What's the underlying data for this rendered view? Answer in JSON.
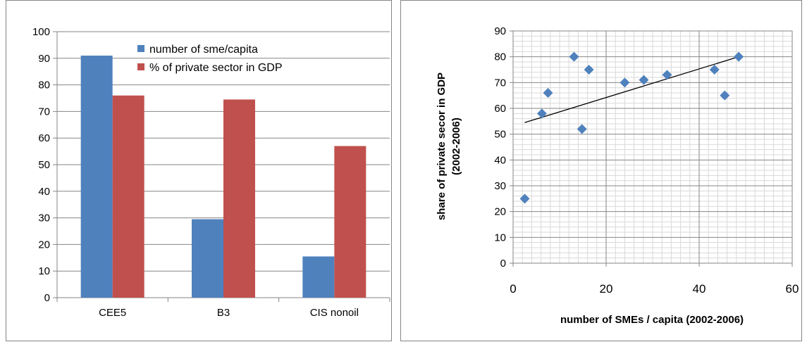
{
  "chart_data": [
    {
      "type": "bar",
      "categories": [
        "CEE5",
        "B3",
        "CIS nonoil"
      ],
      "series": [
        {
          "name": "number of sme/capita",
          "color": "#4f81bd",
          "values": [
            91,
            29.5,
            15.5
          ]
        },
        {
          "name": "% of private sector in GDP",
          "color": "#c0504d",
          "values": [
            76,
            74.5,
            57
          ]
        }
      ],
      "ylim": [
        0,
        100
      ],
      "yticks": [
        0,
        10,
        20,
        30,
        40,
        50,
        60,
        70,
        80,
        90,
        100
      ],
      "grid": "horizontal",
      "legend": "top-center"
    },
    {
      "type": "scatter",
      "xlabel": "number of SMEs  / capita  (2002-2006)",
      "ylabel_lines": [
        "share of private secor in GDP",
        "(2002-2006)"
      ],
      "xlim": [
        0,
        60
      ],
      "ylim": [
        0,
        90
      ],
      "xticks": [
        0,
        20,
        40,
        60
      ],
      "yticks": [
        0,
        10,
        20,
        30,
        40,
        50,
        60,
        70,
        80,
        90
      ],
      "grid": "both",
      "marker_color": "#4f81bd",
      "points": [
        {
          "x": 2.5,
          "y": 25
        },
        {
          "x": 6.2,
          "y": 58
        },
        {
          "x": 7.5,
          "y": 66
        },
        {
          "x": 13.1,
          "y": 80
        },
        {
          "x": 14.8,
          "y": 52
        },
        {
          "x": 16.3,
          "y": 75
        },
        {
          "x": 24,
          "y": 70
        },
        {
          "x": 28.1,
          "y": 71
        },
        {
          "x": 33.1,
          "y": 73
        },
        {
          "x": 43.3,
          "y": 75
        },
        {
          "x": 45.5,
          "y": 65
        },
        {
          "x": 48.5,
          "y": 80
        }
      ],
      "trendline": {
        "x1": 2.5,
        "y1": 54.5,
        "x2": 48.5,
        "y2": 80
      }
    }
  ]
}
